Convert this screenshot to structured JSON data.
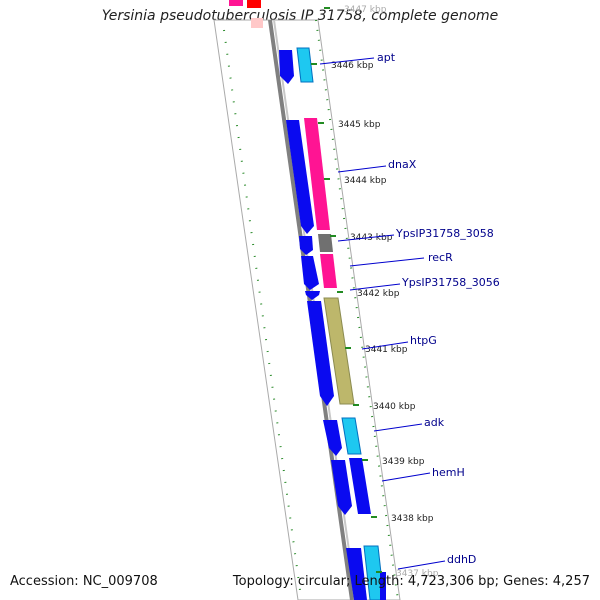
{
  "title": "Yersinia pseudotuberculosis IP 31758, complete genome",
  "footer": {
    "accession": "Accession: NC_009708",
    "topology": "Topology: circular; Length: 4,723,306 bp; Genes: 4,257"
  },
  "ticks": [
    {
      "label": "3447 kbp",
      "kbp": 3447
    },
    {
      "label": "3446 kbp",
      "kbp": 3446
    },
    {
      "label": "3445 kbp",
      "kbp": 3445
    },
    {
      "label": "3444 kbp",
      "kbp": 3444
    },
    {
      "label": "3443 kbp",
      "kbp": 3443
    },
    {
      "label": "3442 kbp",
      "kbp": 3442
    },
    {
      "label": "3441 kbp",
      "kbp": 3441
    },
    {
      "label": "3440 kbp",
      "kbp": 3440
    },
    {
      "label": "3439 kbp",
      "kbp": 3439
    },
    {
      "label": "3438 kbp",
      "kbp": 3438
    },
    {
      "label": "3437 kbp",
      "kbp": 3437
    }
  ],
  "genes": [
    {
      "name": "apt",
      "color_blue": "#0a0af0",
      "color_cat": "#1ec8f0"
    },
    {
      "name": "dnaX",
      "color_blue": "#0a0af0",
      "color_cat": "#ff1493"
    },
    {
      "name": "YpsIP31758_3058",
      "color_blue": "#0a0af0",
      "color_cat": "#707070"
    },
    {
      "name": "recR",
      "color_blue": "#0a0af0",
      "color_cat": "#ff1493"
    },
    {
      "name": "YpsIP31758_3056",
      "color_blue": "#0a0af0",
      "color_cat": ""
    },
    {
      "name": "htpG",
      "color_blue": "#0a0af0",
      "color_cat": "#bdb76b"
    },
    {
      "name": "adk",
      "color_blue": "#0a0af0",
      "color_cat": "#1ec8f0"
    },
    {
      "name": "hemH",
      "color_blue": "#0a0af0",
      "color_cat": "#0a0af0"
    },
    {
      "name": "ddhD",
      "color_blue": "#0a0af0",
      "color_cat": "#1ec8f0"
    }
  ],
  "colors": {
    "backbone": "#808080",
    "tick_green": "#228b22",
    "label_blue": "#00008b",
    "leader_blue": "#0000cd"
  }
}
